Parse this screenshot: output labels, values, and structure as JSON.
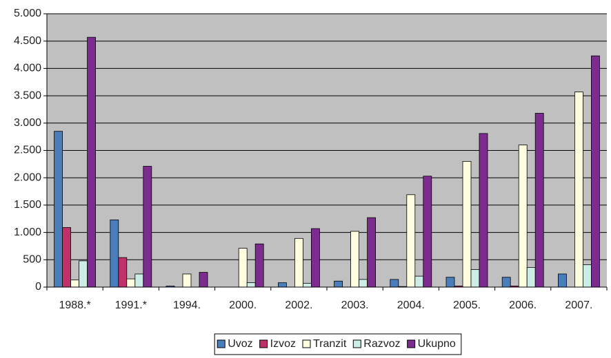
{
  "chart_data": {
    "type": "bar",
    "categories": [
      "1988.*",
      "1991.*",
      "1994.",
      "2000.",
      "2002.",
      "2003.",
      "2004.",
      "2005.",
      "2006.",
      "2007."
    ],
    "series": [
      {
        "name": "Uvoz",
        "color": "#4a7ebb",
        "values": [
          2850,
          1230,
          20,
          0,
          80,
          110,
          140,
          180,
          180,
          240
        ]
      },
      {
        "name": "Izvoz",
        "color": "#c0306a",
        "values": [
          1090,
          540,
          0,
          0,
          0,
          0,
          10,
          20,
          20,
          0
        ]
      },
      {
        "name": "Tranzit",
        "color": "#fffde0",
        "values": [
          130,
          150,
          240,
          710,
          890,
          1020,
          1690,
          2300,
          2600,
          3570
        ]
      },
      {
        "name": "Razvoz",
        "color": "#ccece6",
        "values": [
          480,
          240,
          0,
          80,
          70,
          140,
          200,
          320,
          360,
          410
        ]
      },
      {
        "name": "Ukupno",
        "color": "#7b2c8e",
        "values": [
          4570,
          2210,
          270,
          790,
          1070,
          1270,
          2030,
          2810,
          3180,
          4230
        ]
      }
    ],
    "ylim": [
      0,
      5000
    ],
    "yticks": [
      0,
      500,
      {
        "value": 1000,
        "label": "1.000"
      },
      {
        "value": 1500,
        "label": "1.500"
      },
      {
        "value": 2000,
        "label": "2.000"
      },
      {
        "value": 2500,
        "label": "2.500"
      },
      {
        "value": 3000,
        "label": "3.000"
      },
      {
        "value": 3500,
        "label": "3.500"
      },
      {
        "value": 4000,
        "label": "4.000"
      },
      {
        "value": 4500,
        "label": "4.500"
      },
      {
        "value": 5000,
        "label": "5.000"
      }
    ],
    "grid": true,
    "legend": "bottom"
  }
}
